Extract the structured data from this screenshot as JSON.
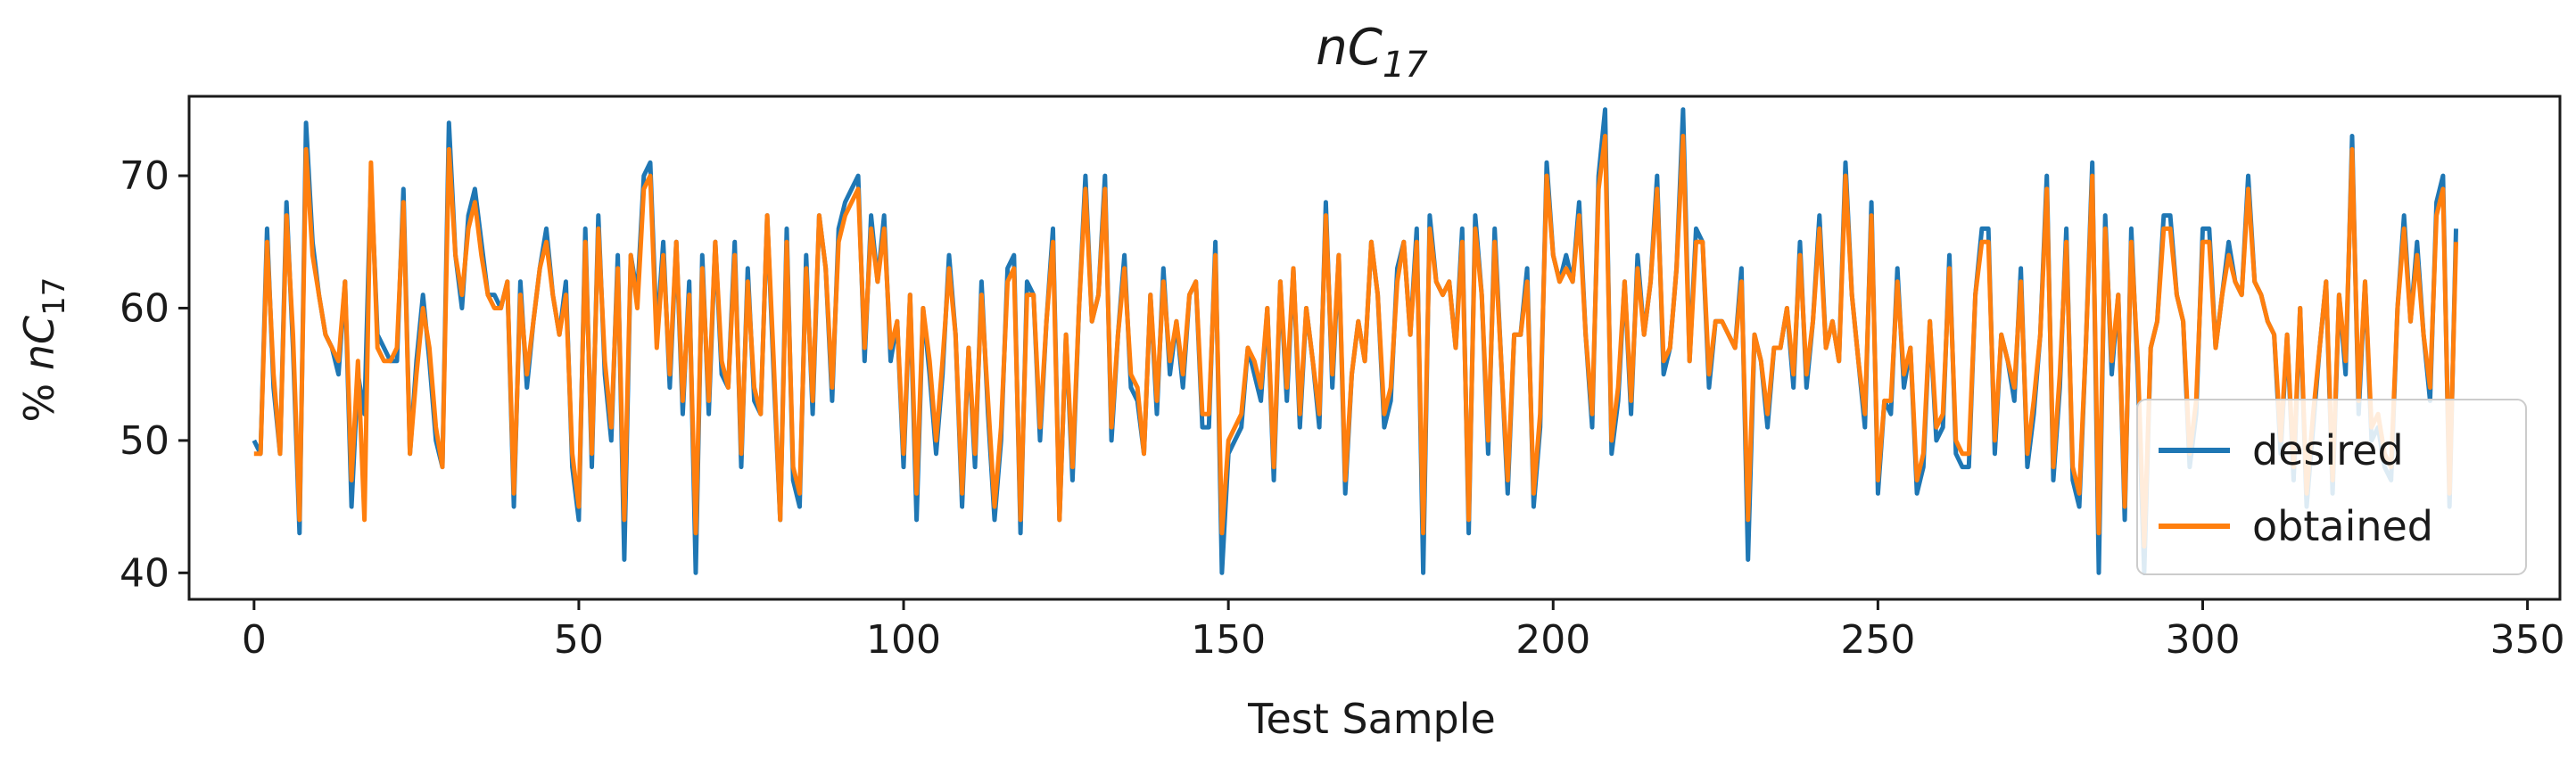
{
  "chart_data": {
    "type": "line",
    "title": "nC",
    "title_sub": "17",
    "xlabel": "Test Sample",
    "ylabel_prefix": "% ",
    "ylabel_main": "nC",
    "ylabel_sub": "17",
    "xlim": [
      -10,
      355
    ],
    "ylim": [
      38,
      76
    ],
    "xticks": [
      0,
      50,
      100,
      150,
      200,
      250,
      300,
      350
    ],
    "yticks": [
      40,
      50,
      60,
      70
    ],
    "grid": false,
    "legend_position": "lower-right",
    "series": [
      {
        "name": "desired",
        "color": "#1f77b4",
        "values": [
          50,
          49,
          66,
          54,
          49,
          68,
          57,
          43,
          74,
          65,
          61,
          58,
          57,
          55,
          62,
          45,
          55,
          52,
          70,
          58,
          57,
          56,
          56,
          69,
          49,
          56,
          61,
          56,
          50,
          48,
          74,
          64,
          60,
          67,
          69,
          65,
          61,
          61,
          60,
          62,
          45,
          62,
          54,
          59,
          63,
          66,
          61,
          58,
          62,
          48,
          44,
          66,
          48,
          67,
          55,
          50,
          64,
          41,
          64,
          61,
          70,
          71,
          58,
          65,
          54,
          65,
          52,
          62,
          40,
          64,
          52,
          65,
          55,
          54,
          65,
          48,
          63,
          53,
          52,
          67,
          55,
          44,
          66,
          47,
          45,
          64,
          52,
          67,
          63,
          53,
          66,
          68,
          69,
          70,
          56,
          67,
          62,
          67,
          56,
          59,
          48,
          61,
          44,
          60,
          55,
          49,
          55,
          64,
          58,
          45,
          57,
          48,
          62,
          52,
          44,
          50,
          63,
          64,
          43,
          62,
          61,
          50,
          59,
          66,
          44,
          58,
          47,
          60,
          70,
          59,
          61,
          70,
          50,
          58,
          64,
          54,
          53,
          49,
          61,
          52,
          63,
          55,
          59,
          54,
          61,
          62,
          51,
          51,
          65,
          40,
          49,
          50,
          51,
          57,
          55,
          53,
          60,
          47,
          62,
          53,
          63,
          51,
          60,
          56,
          51,
          68,
          54,
          64,
          46,
          55,
          59,
          56,
          65,
          61,
          51,
          53,
          63,
          65,
          58,
          66,
          40,
          67,
          62,
          61,
          62,
          57,
          66,
          43,
          67,
          61,
          49,
          66,
          56,
          46,
          58,
          58,
          63,
          45,
          51,
          71,
          64,
          62,
          64,
          62,
          68,
          58,
          51,
          70,
          75,
          49,
          53,
          62,
          52,
          64,
          58,
          62,
          70,
          55,
          57,
          63,
          75,
          56,
          66,
          65,
          54,
          59,
          59,
          58,
          57,
          63,
          41,
          58,
          56,
          51,
          57,
          57,
          60,
          54,
          65,
          54,
          59,
          67,
          57,
          59,
          56,
          71,
          61,
          56,
          51,
          68,
          46,
          53,
          52,
          63,
          54,
          57,
          46,
          48,
          59,
          50,
          51,
          64,
          49,
          48,
          48,
          61,
          66,
          66,
          49,
          58,
          56,
          53,
          63,
          48,
          52,
          58,
          70,
          47,
          54,
          66,
          47,
          45,
          57,
          71,
          40,
          67,
          55,
          61,
          44,
          66,
          55,
          40,
          57,
          59,
          67,
          67,
          61,
          59,
          48,
          52,
          66,
          66,
          57,
          61,
          65,
          62,
          61,
          70,
          62,
          61,
          59,
          58,
          49,
          58,
          47,
          60,
          45,
          51,
          57,
          62,
          46,
          61,
          55,
          73,
          52,
          62,
          50,
          51,
          48,
          47,
          60,
          67,
          59,
          65,
          58,
          53,
          68,
          70,
          45,
          66
        ]
      },
      {
        "name": "obtained",
        "color": "#ff7f0e",
        "values": [
          49,
          49,
          65,
          55,
          49,
          67,
          58,
          44,
          72,
          64,
          61,
          58,
          57,
          56,
          62,
          47,
          56,
          44,
          71,
          57,
          56,
          56,
          57,
          68,
          49,
          55,
          60,
          57,
          51,
          48,
          72,
          64,
          61,
          66,
          68,
          64,
          61,
          60,
          60,
          62,
          46,
          61,
          55,
          59,
          63,
          65,
          61,
          58,
          61,
          49,
          45,
          65,
          49,
          66,
          56,
          51,
          63,
          44,
          64,
          60,
          69,
          70,
          57,
          64,
          55,
          65,
          53,
          61,
          43,
          63,
          53,
          65,
          56,
          54,
          64,
          49,
          62,
          54,
          52,
          67,
          56,
          44,
          65,
          48,
          46,
          63,
          53,
          67,
          63,
          54,
          65,
          67,
          68,
          69,
          57,
          66,
          62,
          66,
          57,
          59,
          49,
          61,
          46,
          60,
          56,
          50,
          56,
          63,
          58,
          46,
          57,
          49,
          61,
          53,
          45,
          51,
          62,
          63,
          44,
          61,
          61,
          51,
          59,
          65,
          44,
          58,
          48,
          60,
          69,
          59,
          61,
          69,
          51,
          58,
          63,
          55,
          54,
          49,
          61,
          53,
          62,
          56,
          59,
          55,
          61,
          62,
          52,
          52,
          64,
          43,
          50,
          51,
          52,
          57,
          56,
          54,
          60,
          48,
          62,
          54,
          63,
          52,
          60,
          56,
          52,
          67,
          55,
          64,
          47,
          55,
          59,
          56,
          65,
          61,
          52,
          54,
          62,
          65,
          58,
          65,
          43,
          66,
          62,
          61,
          62,
          57,
          65,
          44,
          66,
          61,
          50,
          65,
          56,
          47,
          58,
          58,
          62,
          46,
          52,
          70,
          64,
          62,
          63,
          62,
          67,
          58,
          52,
          69,
          73,
          50,
          54,
          62,
          53,
          63,
          58,
          62,
          69,
          56,
          57,
          63,
          73,
          56,
          65,
          65,
          55,
          59,
          59,
          58,
          57,
          62,
          44,
          58,
          56,
          52,
          57,
          57,
          60,
          55,
          64,
          55,
          59,
          66,
          57,
          59,
          56,
          70,
          61,
          56,
          52,
          67,
          47,
          53,
          53,
          62,
          55,
          57,
          47,
          49,
          59,
          51,
          52,
          63,
          50,
          49,
          49,
          61,
          65,
          65,
          50,
          58,
          56,
          54,
          62,
          49,
          53,
          58,
          69,
          48,
          55,
          65,
          48,
          46,
          57,
          70,
          43,
          66,
          56,
          61,
          45,
          65,
          56,
          42,
          57,
          59,
          66,
          66,
          61,
          59,
          49,
          53,
          65,
          65,
          57,
          61,
          64,
          62,
          61,
          69,
          62,
          61,
          59,
          58,
          50,
          58,
          48,
          60,
          46,
          52,
          57,
          62,
          47,
          61,
          56,
          72,
          53,
          62,
          51,
          52,
          49,
          48,
          60,
          66,
          59,
          64,
          58,
          54,
          67,
          69,
          46,
          65
        ]
      }
    ]
  }
}
